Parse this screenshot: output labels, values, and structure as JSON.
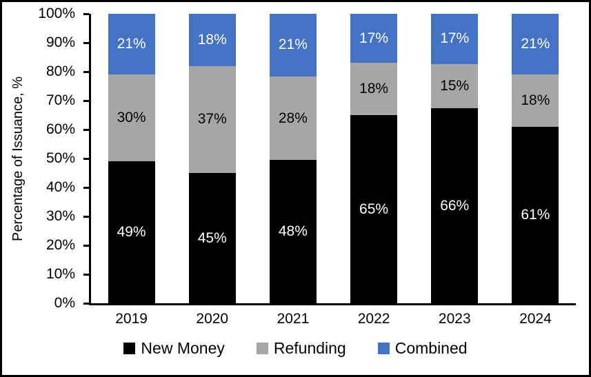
{
  "window": {
    "background": "#ffffff",
    "border_color": "#000000"
  },
  "chart_data": {
    "type": "bar",
    "stacked": true,
    "title": "",
    "ylabel": "Percentage of Issuance, %",
    "xlabel": "",
    "categories": [
      "2019",
      "2020",
      "2021",
      "2022",
      "2023",
      "2024"
    ],
    "series": [
      {
        "name": "New Money",
        "color": "#000000",
        "label_color": "#ffffff",
        "values": [
          49,
          45,
          48,
          65,
          66,
          61
        ]
      },
      {
        "name": "Refunding",
        "color": "#a6a6a6",
        "label_color": "#000000",
        "values": [
          30,
          37,
          28,
          18,
          15,
          18
        ]
      },
      {
        "name": "Combined",
        "color": "#4472c4",
        "label_color": "#ffffff",
        "values": [
          21,
          18,
          21,
          17,
          17,
          21
        ]
      }
    ],
    "value_suffix": "%",
    "y_ticks": [
      "0%",
      "10%",
      "20%",
      "30%",
      "40%",
      "50%",
      "60%",
      "70%",
      "80%",
      "90%",
      "100%"
    ],
    "ylim": [
      0,
      100
    ],
    "grid": false,
    "legend_position": "bottom",
    "legend_swatch_colors": [
      "#000000",
      "#a6a6a6",
      "#4472c4"
    ]
  }
}
